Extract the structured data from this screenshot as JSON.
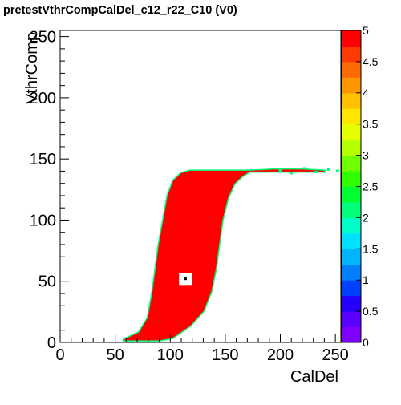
{
  "chart_data": {
    "type": "heatmap",
    "title": "pretestVthrCompCalDel_c12_r22_C10 (V0)",
    "xlabel": "CalDel",
    "ylabel": "VthrComp",
    "xlim": [
      0,
      255
    ],
    "ylim": [
      0,
      255
    ],
    "x_ticks": [
      0,
      50,
      100,
      150,
      200,
      250
    ],
    "y_ticks": [
      0,
      50,
      100,
      150,
      200,
      250
    ],
    "colorbar": {
      "min": 0,
      "max": 5,
      "ticks": [
        "0",
        "0.5",
        "1",
        "1.5",
        "2",
        "2.5",
        "3",
        "3.5",
        "4",
        "4.5",
        "5"
      ],
      "palette": [
        "#8000ff",
        "#5a00ff",
        "#2600ff",
        "#0040ff",
        "#0080ff",
        "#00b4ff",
        "#00e0ff",
        "#00ffc8",
        "#00ff7a",
        "#00ff30",
        "#30ff00",
        "#70ff00",
        "#b4ff00",
        "#e6ff00",
        "#ffe600",
        "#ffc000",
        "#ff9600",
        "#ff6a00",
        "#ff3a00",
        "#ff0000"
      ]
    },
    "region": {
      "value": 5,
      "left_edge": [
        [
          58,
          2
        ],
        [
          72,
          8
        ],
        [
          80,
          20
        ],
        [
          84,
          40
        ],
        [
          87,
          60
        ],
        [
          90,
          80
        ],
        [
          94,
          100
        ],
        [
          98,
          120
        ],
        [
          103,
          132
        ],
        [
          110,
          138
        ],
        [
          118,
          140
        ]
      ],
      "right_edge": [
        [
          240,
          140
        ],
        [
          220,
          141
        ],
        [
          195,
          141
        ],
        [
          172,
          140
        ],
        [
          165,
          136
        ],
        [
          158,
          130
        ],
        [
          152,
          118
        ],
        [
          147,
          100
        ],
        [
          144,
          80
        ],
        [
          141,
          60
        ],
        [
          137,
          42
        ],
        [
          130,
          26
        ],
        [
          118,
          14
        ],
        [
          102,
          4
        ],
        [
          90,
          2
        ]
      ],
      "fringe_value": 2,
      "tail_points": [
        [
          200,
          140
        ],
        [
          210,
          138
        ],
        [
          222,
          142
        ],
        [
          232,
          139
        ],
        [
          244,
          141
        ],
        [
          252,
          140
        ]
      ],
      "hole": {
        "x": [
          108,
          120
        ],
        "y": [
          47,
          57
        ]
      }
    }
  }
}
